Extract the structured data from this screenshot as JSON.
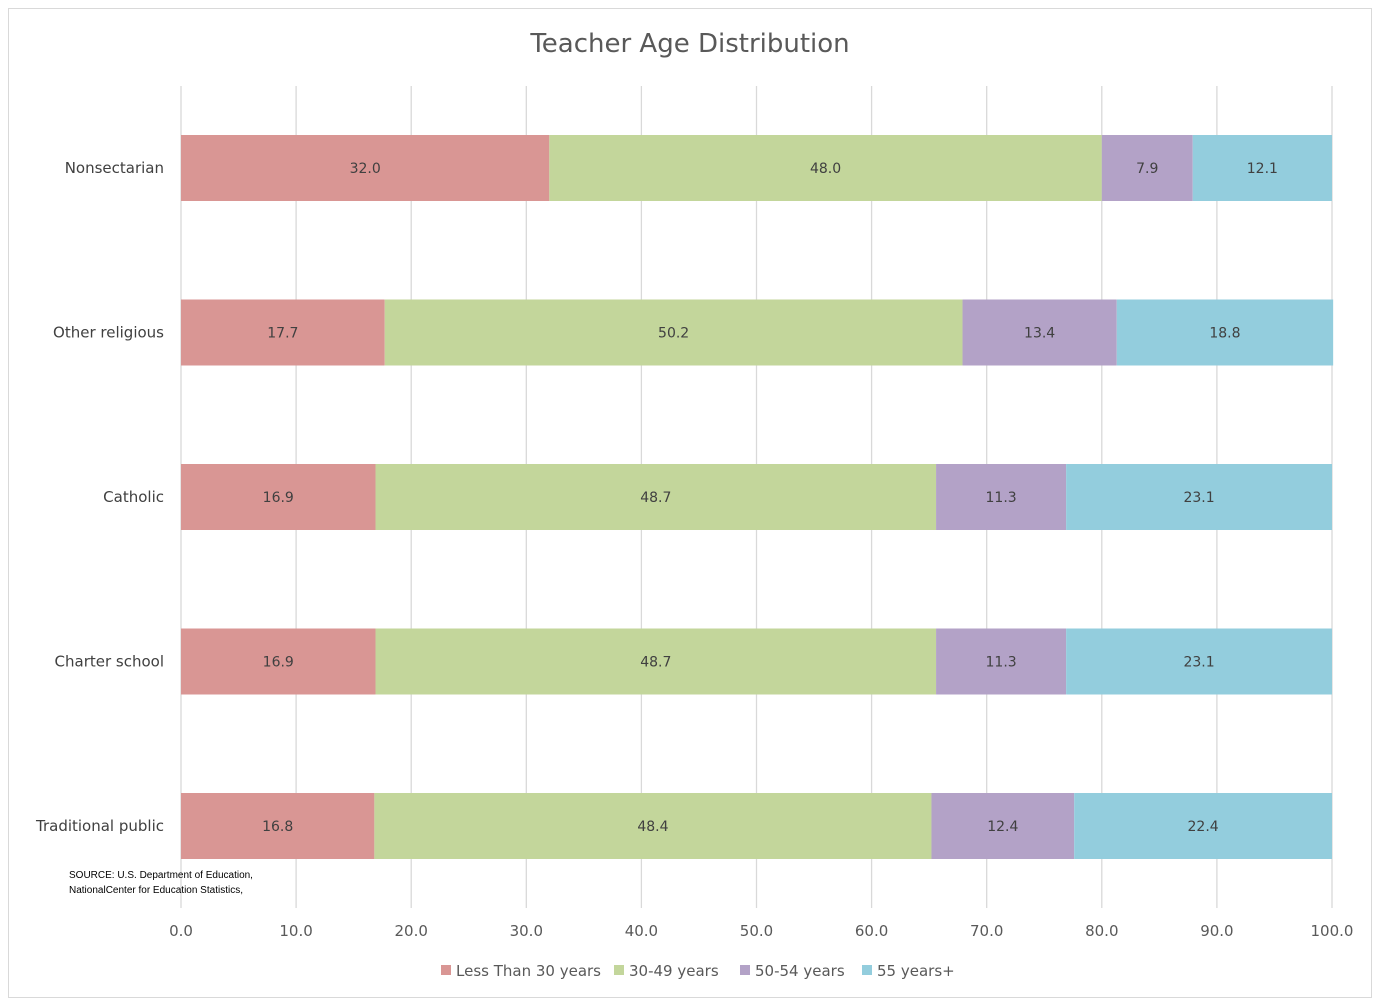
{
  "chart_data": {
    "type": "bar",
    "orientation": "horizontal",
    "stacked": true,
    "title": "Teacher Age Distribution",
    "categories": [
      "Nonsectarian",
      "Other religious",
      "Catholic",
      "Charter school",
      "Traditional public"
    ],
    "series": [
      {
        "name": "Less Than 30 years",
        "color": "#d99694",
        "values": [
          32.0,
          17.7,
          16.9,
          16.9,
          16.8
        ]
      },
      {
        "name": "30-49 years",
        "color": "#c3d69b",
        "values": [
          48.0,
          50.2,
          48.7,
          48.7,
          48.4
        ]
      },
      {
        "name": "50-54 years",
        "color": "#b3a2c7",
        "values": [
          7.9,
          13.4,
          11.3,
          11.3,
          12.4
        ]
      },
      {
        "name": "55 years+",
        "color": "#93cddd",
        "values": [
          12.1,
          18.8,
          23.1,
          23.1,
          22.4
        ]
      }
    ],
    "xlim": [
      0,
      100
    ],
    "xticks": [
      "0.0",
      "10.0",
      "20.0",
      "30.0",
      "40.0",
      "50.0",
      "60.0",
      "70.0",
      "80.0",
      "90.0",
      "100.0"
    ],
    "grid": true,
    "legend": "bottom",
    "source_lines": [
      "SOURCE: U.S. Department of Education,",
      "NationalCenter for Education Statistics,"
    ]
  }
}
